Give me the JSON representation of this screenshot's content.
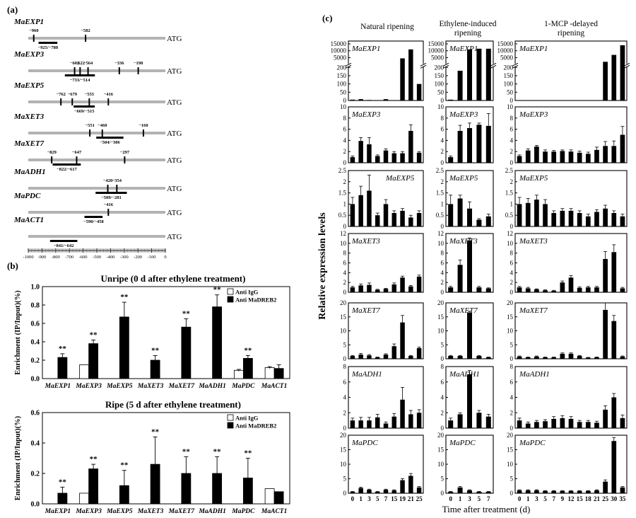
{
  "panel_labels": {
    "a": "(a)",
    "b": "(b)",
    "c": "(c)"
  },
  "promoter": {
    "end_label": "ATG",
    "axis_ticks": [
      "-1000",
      "-900",
      "-800",
      "-700",
      "-600",
      "-500",
      "-400",
      "-300",
      "-200",
      "-100",
      "0"
    ],
    "genes": [
      {
        "name": "MaEXP1",
        "sites": [
          {
            "pos": -960,
            "label": "−960"
          },
          {
            "pos": -582,
            "label": "−582"
          }
        ],
        "region": {
          "from": -925,
          "to": -788,
          "label": "−925/−788"
        }
      },
      {
        "name": "MaEXP3",
        "sites": [
          {
            "pos": -662,
            "label": "−662"
          },
          {
            "pos": -622,
            "label": "−622"
          },
          {
            "pos": -564,
            "label": "−564"
          },
          {
            "pos": -336,
            "label": "−336"
          },
          {
            "pos": -198,
            "label": "−198"
          }
        ],
        "region": {
          "from": -733,
          "to": -514,
          "label": "−733/−514"
        }
      },
      {
        "name": "MaEXP5",
        "sites": [
          {
            "pos": -762,
            "label": "−762"
          },
          {
            "pos": -679,
            "label": "−679"
          },
          {
            "pos": -555,
            "label": "−555"
          },
          {
            "pos": -416,
            "label": "−416"
          }
        ],
        "region": {
          "from": -669,
          "to": -515,
          "label": "−669/−515"
        }
      },
      {
        "name": "MaXET3",
        "sites": [
          {
            "pos": -551,
            "label": "−551"
          },
          {
            "pos": -460,
            "label": "−460"
          },
          {
            "pos": -160,
            "label": "−160"
          }
        ],
        "region": {
          "from": -504,
          "to": -306,
          "label": "−504/−306"
        }
      },
      {
        "name": "MaXET7",
        "sites": [
          {
            "pos": -829,
            "label": "−829"
          },
          {
            "pos": -647,
            "label": "−647"
          },
          {
            "pos": -297,
            "label": "−297"
          }
        ],
        "region": {
          "from": -822,
          "to": -617,
          "label": "−822/−617"
        }
      },
      {
        "name": "MaADH1",
        "sites": [
          {
            "pos": -420,
            "label": "−420"
          },
          {
            "pos": -354,
            "label": "−354"
          }
        ],
        "region": {
          "from": -509,
          "to": -281,
          "label": "−509/−281"
        }
      },
      {
        "name": "MaPDC",
        "sites": [
          {
            "pos": -416,
            "label": "−416"
          }
        ],
        "region": {
          "from": -590,
          "to": -458,
          "label": "−590/−458"
        }
      },
      {
        "name": "MaACT1",
        "sites": [],
        "region": {
          "from": -841,
          "to": -642,
          "label": "−841/−642"
        }
      }
    ]
  },
  "chart_data": [
    {
      "type": "bar",
      "panel": "b-top",
      "title": "Unripe (0 d after ethylene treatment)",
      "ylabel": "Enrichment (IP/Input)(%)",
      "ylim": [
        0,
        1.0
      ],
      "yticks": [
        "0.0",
        "0.2",
        "0.4",
        "0.6",
        "0.8",
        "1.0"
      ],
      "categories": [
        "MaEXP1",
        "MaEXP3",
        "MaEXP5",
        "MaXET3",
        "MaXET7",
        "MaADH1",
        "MaPDC",
        "MaACT1"
      ],
      "legend": [
        "Anti IgG",
        "Anti MaDREB2"
      ],
      "legend_position": "top-right",
      "series": [
        {
          "name": "Anti IgG",
          "color": "#ffffff",
          "values": [
            0,
            0.15,
            0,
            0,
            0,
            0,
            0.09,
            0.12
          ],
          "errors": [
            0,
            0,
            0,
            0,
            0,
            0,
            0.01,
            0.01
          ]
        },
        {
          "name": "Anti MaDREB2",
          "color": "#000000",
          "values": [
            0.23,
            0.38,
            0.67,
            0.2,
            0.56,
            0.78,
            0.22,
            0.11
          ],
          "errors": [
            0.04,
            0.04,
            0.16,
            0.05,
            0.09,
            0.13,
            0.03,
            0.04
          ]
        }
      ],
      "significance": [
        "**",
        "**",
        "**",
        "**",
        "**",
        "**",
        "**",
        ""
      ]
    },
    {
      "type": "bar",
      "panel": "b-bottom",
      "title": "Ripe (5 d after ethylene treatment)",
      "ylabel": "Enrichment (IP/Input)(%)",
      "ylim": [
        0,
        0.6
      ],
      "yticks": [
        "0.0",
        "0.2",
        "0.4",
        "0.6"
      ],
      "categories": [
        "MaEXP1",
        "MaEXP3",
        "MaEXP5",
        "MaXET3",
        "MaXET7",
        "MaADH1",
        "MaPDC",
        "MaACT1"
      ],
      "legend": [
        "Anti IgG",
        "Anti MaDREB2"
      ],
      "legend_position": "top-right",
      "series": [
        {
          "name": "Anti IgG",
          "color": "#ffffff",
          "values": [
            0,
            0.07,
            0,
            0,
            0,
            0,
            0,
            0.1
          ],
          "errors": [
            0,
            0,
            0,
            0,
            0,
            0,
            0,
            0
          ]
        },
        {
          "name": "Anti MaDREB2",
          "color": "#000000",
          "values": [
            0.07,
            0.23,
            0.12,
            0.26,
            0.2,
            0.2,
            0.17,
            0.08
          ],
          "errors": [
            0.04,
            0.03,
            0.1,
            0.18,
            0.11,
            0.11,
            0.13,
            0
          ]
        }
      ],
      "significance": [
        "**",
        "**",
        "**",
        "**",
        "**",
        "**",
        "**",
        ""
      ]
    },
    {
      "type": "bar",
      "panel": "c",
      "ylabel": "Relative expression levels",
      "xlabel": "Time after treatment (d)",
      "columns": [
        {
          "title": "Natural ripening",
          "x": [
            "0",
            "1",
            "3",
            "5",
            "7",
            "15",
            "19",
            "21",
            "25"
          ]
        },
        {
          "title": "Ethylene-induced ripening",
          "x": [
            "0",
            "1",
            "3",
            "5",
            "7"
          ]
        },
        {
          "title": "1-MCP -delayed ripening",
          "x": [
            "0",
            "1",
            "3",
            "5",
            "7",
            "9",
            "12",
            "15",
            "18",
            "21",
            "25",
            "30",
            "35"
          ]
        }
      ],
      "rows": [
        {
          "gene": "MaEXP1",
          "broken_axis": true,
          "yticks_low": [
            "0",
            "50",
            "100",
            "150",
            "200"
          ],
          "yticks_high": [
            "5000",
            "10000",
            "15000"
          ],
          "values": [
            [
              5,
              8,
              3,
              2,
              8,
              2,
              4500,
              11000,
              100
            ],
            [
              5,
              180,
              11000,
              11500,
              11500
            ],
            [
              1,
              1,
              1,
              1,
              1,
              1,
              1,
              1,
              1,
              1,
              2000,
              7000,
              14000
            ]
          ]
        },
        {
          "gene": "MaEXP3",
          "ylim": [
            0,
            10
          ],
          "yticks": [
            "0",
            "2",
            "4",
            "6",
            "8",
            "10"
          ],
          "values": [
            [
              1.0,
              3.9,
              3.3,
              1.2,
              2.2,
              1.7,
              1.7,
              5.7,
              1.8
            ],
            [
              1.0,
              5.7,
              6.2,
              6.8,
              6.6
            ],
            [
              1.2,
              2.2,
              2.9,
              2.0,
              2.0,
              2.1,
              2.0,
              1.8,
              1.6,
              2.3,
              3.0,
              3.0,
              5.0
            ]
          ],
          "errors": [
            [
              0.2,
              0.6,
              1.2,
              0.2,
              0.3,
              0.3,
              0.3,
              1.1,
              0.2
            ],
            [
              0.2,
              1.0,
              0.9,
              0.3,
              2.2
            ],
            [
              0.2,
              0.3,
              0.2,
              0.3,
              0.2,
              0.2,
              0.3,
              0.3,
              0.3,
              0.5,
              0.8,
              0.9,
              1.5
            ]
          ]
        },
        {
          "gene": "MaEXP5",
          "ylim": [
            0,
            2.5
          ],
          "yticks": [
            "0",
            "0.5",
            "1",
            "1.5",
            "2",
            "2.5"
          ],
          "values": [
            [
              1.0,
              1.4,
              1.6,
              0.5,
              1.0,
              0.6,
              0.7,
              0.4,
              0.6
            ],
            [
              1.0,
              1.25,
              0.8,
              0.3,
              0.45
            ],
            [
              1.0,
              1.05,
              1.2,
              1.0,
              0.6,
              0.7,
              0.7,
              0.6,
              0.45,
              0.65,
              0.8,
              0.6,
              0.45
            ]
          ],
          "errors": [
            [
              0.3,
              0.4,
              0.7,
              0.1,
              0.2,
              0.1,
              0.1,
              0.1,
              0.1
            ],
            [
              0.4,
              0.15,
              0.3,
              0.05,
              0.1
            ],
            [
              0.3,
              0.2,
              0.2,
              0.2,
              0.1,
              0.1,
              0.1,
              0.1,
              0.1,
              0.1,
              0.15,
              0.1,
              0.1
            ]
          ]
        },
        {
          "gene": "MaXET3",
          "ylim": [
            0,
            12
          ],
          "yticks": [
            "0",
            "2",
            "4",
            "6",
            "8",
            "10",
            "12"
          ],
          "values": [
            [
              1.0,
              1.4,
              1.5,
              0.5,
              0.7,
              1.6,
              3.0,
              1.2,
              3.2
            ],
            [
              1.0,
              5.6,
              10.6,
              1.0,
              0.8
            ],
            [
              1.0,
              0.8,
              0.6,
              0.4,
              0.3,
              2.0,
              3.0,
              0.9,
              1.0,
              1.0,
              6.8,
              8.2,
              0.8
            ]
          ],
          "errors": [
            [
              0.2,
              0.3,
              0.4,
              0.1,
              0.1,
              0.3,
              0.3,
              0.2,
              0.3
            ],
            [
              0.2,
              1.0,
              0.5,
              0.2,
              0.1
            ],
            [
              0.2,
              0.2,
              0.1,
              0.1,
              0.1,
              0.3,
              0.4,
              0.2,
              0.2,
              0.2,
              1.5,
              1.5,
              0.2
            ]
          ]
        },
        {
          "gene": "MaXET7",
          "ylim": [
            0,
            20
          ],
          "yticks": [
            "0",
            "5",
            "10",
            "15",
            "20"
          ],
          "values": [
            [
              1.0,
              1.5,
              1.2,
              0.5,
              1.5,
              4.5,
              13.0,
              1.0,
              3.8
            ],
            [
              1.0,
              1.0,
              16.5,
              1.0,
              0.5
            ],
            [
              0.8,
              0.5,
              0.8,
              0.5,
              0.5,
              1.8,
              1.8,
              1.0,
              0.4,
              0.5,
              17.5,
              13.5,
              0.8
            ]
          ],
          "errors": [
            [
              0.2,
              0.4,
              0.3,
              0.1,
              0.3,
              0.8,
              2.5,
              0.2,
              0.4
            ],
            [
              0.2,
              0.2,
              0.5,
              0.2,
              0.1
            ],
            [
              0.2,
              0.1,
              0.2,
              0.1,
              0.1,
              0.3,
              0.3,
              0.2,
              0.1,
              0.1,
              2.5,
              2.0,
              0.2
            ]
          ]
        },
        {
          "gene": "MaADH1",
          "ylim": [
            0,
            8
          ],
          "yticks": [
            "0",
            "2",
            "4",
            "6",
            "8"
          ],
          "values": [
            [
              1.0,
              1.0,
              1.0,
              1.4,
              0.6,
              1.5,
              3.7,
              1.8,
              2.0
            ],
            [
              1.0,
              1.8,
              7.0,
              2.0,
              1.5
            ],
            [
              1.0,
              0.6,
              0.8,
              0.9,
              1.2,
              1.3,
              1.2,
              0.8,
              0.8,
              0.7,
              2.4,
              4.0,
              1.3
            ]
          ],
          "errors": [
            [
              0.3,
              0.4,
              0.4,
              0.4,
              0.2,
              0.4,
              1.6,
              0.5,
              0.4
            ],
            [
              0.3,
              0.2,
              0.5,
              0.3,
              0.3
            ],
            [
              0.3,
              0.2,
              0.2,
              0.2,
              0.3,
              0.3,
              0.3,
              0.2,
              0.2,
              0.2,
              0.5,
              0.5,
              0.4
            ]
          ]
        },
        {
          "gene": "MaPDC",
          "ylim": [
            0,
            20
          ],
          "yticks": [
            "0",
            "5",
            "10",
            "15",
            "20"
          ],
          "values": [
            [
              0.5,
              1.8,
              1.2,
              0.5,
              1.2,
              1.0,
              4.5,
              6.0,
              2.0
            ],
            [
              0.5,
              2.0,
              1.0,
              0.5,
              0.5
            ],
            [
              1.0,
              1.0,
              1.0,
              0.8,
              0.8,
              0.8,
              0.8,
              0.8,
              0.8,
              1.0,
              4.0,
              18.0,
              2.0
            ]
          ],
          "errors": [
            [
              0.1,
              0.3,
              0.2,
              0.1,
              0.2,
              0.2,
              0.5,
              0.8,
              0.3
            ],
            [
              0.1,
              0.3,
              0.2,
              0.1,
              0.1
            ],
            [
              0.2,
              0.2,
              0.2,
              0.1,
              0.1,
              0.1,
              0.1,
              0.1,
              0.1,
              0.2,
              0.6,
              1.2,
              0.3
            ]
          ]
        }
      ]
    }
  ]
}
